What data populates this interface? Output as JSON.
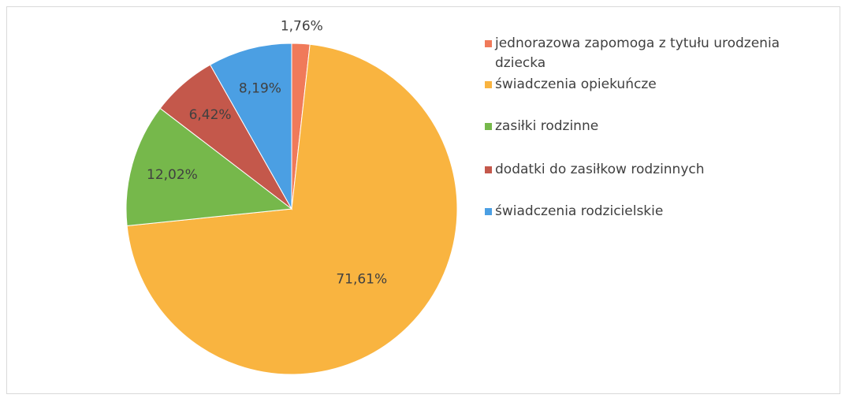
{
  "chart_data": {
    "type": "pie",
    "categories": [
      "jednorazowa zapomoga z tytułu urodzenia dziecka",
      "świadczenia opiekuńcze",
      "zasiłki rodzinne",
      "dodatki do zasiłkow rodzinnych",
      "świadczenia rodzicielskie"
    ],
    "values": [
      1.76,
      71.61,
      12.02,
      6.42,
      8.19
    ],
    "value_labels": [
      "1,76%",
      "71,61%",
      "12,02%",
      "6,42%",
      "8,19%"
    ],
    "colors": [
      "#f07a5a",
      "#f9b440",
      "#76b84b",
      "#c4584b",
      "#4b9fe3"
    ],
    "legend": "right"
  }
}
